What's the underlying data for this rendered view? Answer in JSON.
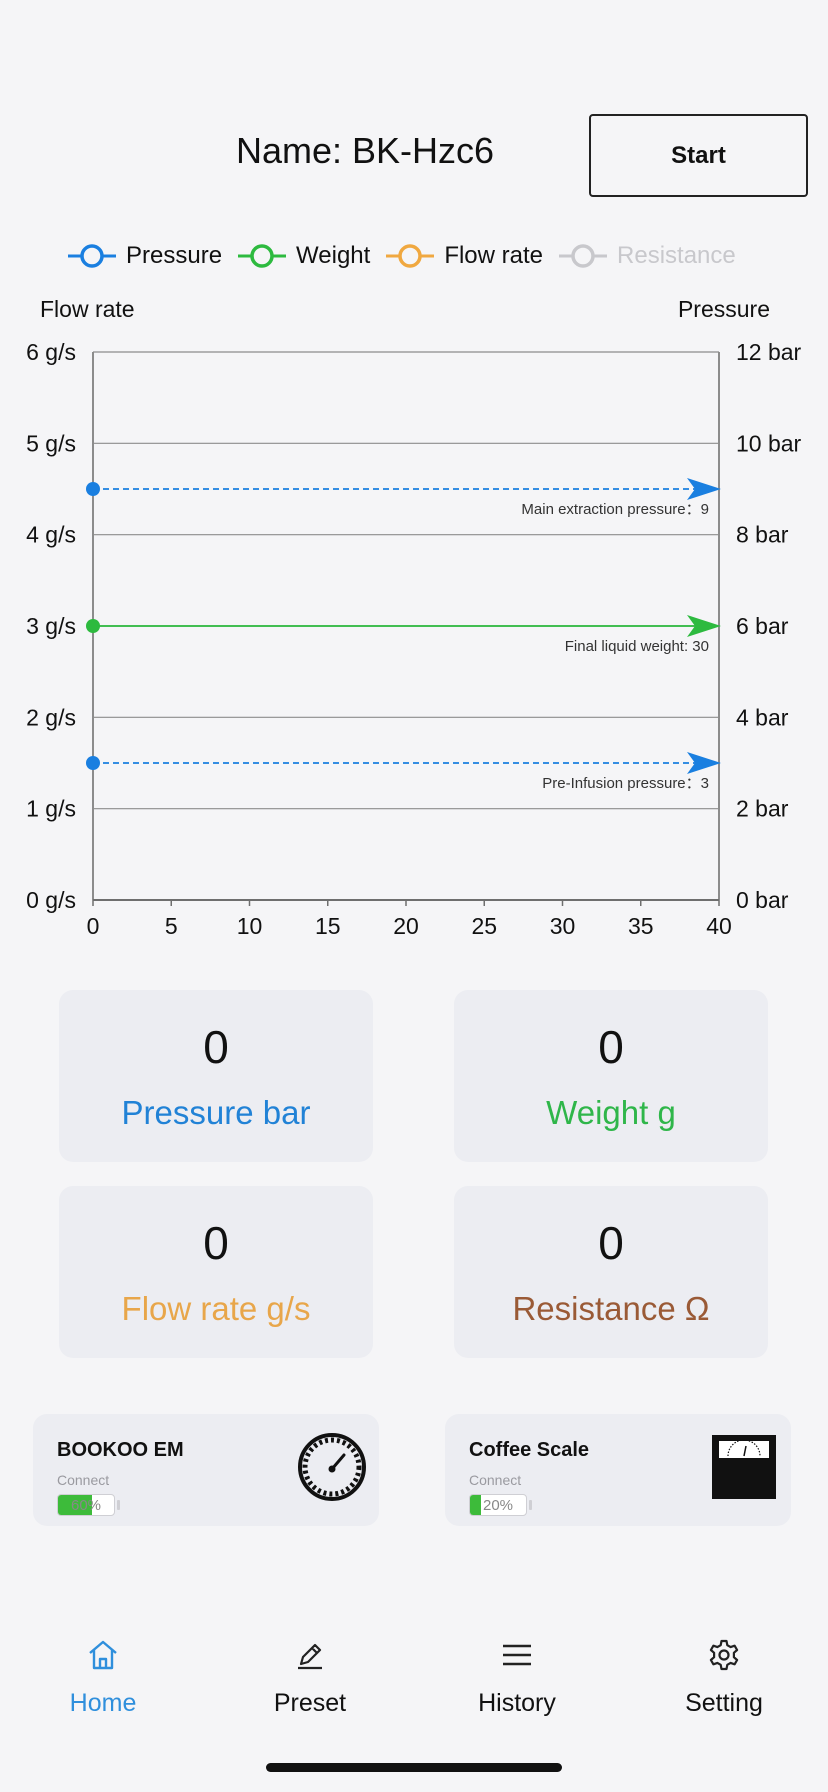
{
  "header": {
    "title": "Name: BK-Hzc6",
    "start_label": "Start"
  },
  "legend": [
    {
      "label": "Pressure",
      "color": "#1a7fe0",
      "active": true
    },
    {
      "label": "Weight",
      "color": "#2dba3f",
      "active": true
    },
    {
      "label": "Flow rate",
      "color": "#f0a840",
      "active": true
    },
    {
      "label": "Resistance",
      "color": "#c8c8cc",
      "active": false
    }
  ],
  "chart_data": {
    "type": "line",
    "left_axis_title": "Flow rate",
    "right_axis_title": "Pressure",
    "x": {
      "ticks": [
        "0",
        "5",
        "10",
        "15",
        "20",
        "25",
        "30",
        "35",
        "40"
      ],
      "range": [
        0,
        40
      ]
    },
    "y_left": {
      "ticks": [
        "0 g/s",
        "1 g/s",
        "2 g/s",
        "3 g/s",
        "4 g/s",
        "5 g/s",
        "6 g/s"
      ],
      "range": [
        0,
        6
      ]
    },
    "y_right": {
      "ticks": [
        "0 bar",
        "2 bar",
        "4 bar",
        "6 bar",
        "8 bar",
        "10 bar",
        "12 bar"
      ],
      "range": [
        0,
        12
      ]
    },
    "gridlines": [
      0,
      1,
      2,
      3,
      4,
      5,
      6
    ],
    "reference_lines": [
      {
        "label": "Main extraction pressure：9",
        "value": 9,
        "axis": "right",
        "color": "#1a7fe0",
        "dashed": true
      },
      {
        "label": "Final liquid weight: 30",
        "value": 6,
        "axis": "right",
        "color": "#2dba3f",
        "dashed": false
      },
      {
        "label": "Pre-Infusion pressure：3",
        "value": 3,
        "axis": "right",
        "color": "#1a7fe0",
        "dashed": true
      }
    ]
  },
  "cards": [
    {
      "value": "0",
      "label": "Pressure bar",
      "color": "#2182d6"
    },
    {
      "value": "0",
      "label": "Weight g",
      "color": "#2fb64a"
    },
    {
      "value": "0",
      "label": "Flow rate g/s",
      "color": "#e8a64a"
    },
    {
      "value": "0",
      "label": "Resistance Ω",
      "color": "#9a5a36"
    }
  ],
  "devices": [
    {
      "name": "BOOKOO EM",
      "status": "Connect",
      "battery_text": "60%",
      "battery_level": 0.6,
      "icon": "pressure-gauge-icon"
    },
    {
      "name": "Coffee Scale",
      "status": "Connect",
      "battery_text": "20%",
      "battery_level": 0.2,
      "icon": "scale-icon"
    }
  ],
  "nav": [
    {
      "label": "Home",
      "icon": "home-icon",
      "active": true
    },
    {
      "label": "Preset",
      "icon": "pencil-icon",
      "active": false
    },
    {
      "label": "History",
      "icon": "menu-lines-icon",
      "active": false
    },
    {
      "label": "Setting",
      "icon": "gear-icon",
      "active": false
    }
  ]
}
